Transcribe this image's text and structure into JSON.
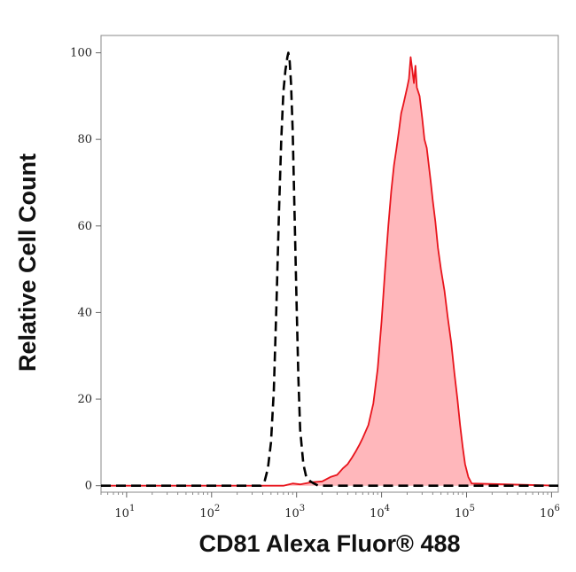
{
  "chart_data": {
    "type": "area",
    "xlabel": "CD81 Alexa Fluor® 488",
    "ylabel": "Relative Cell Count",
    "x_scale": "log",
    "xlim": [
      5,
      1200000
    ],
    "ylim": [
      -1.5,
      104
    ],
    "x_ticks": [
      {
        "value": 10,
        "base": "10",
        "exp": "1"
      },
      {
        "value": 100,
        "base": "10",
        "exp": "2"
      },
      {
        "value": 1000,
        "base": "10",
        "exp": "3"
      },
      {
        "value": 10000,
        "base": "10",
        "exp": "4"
      },
      {
        "value": 100000,
        "base": "10",
        "exp": "5"
      },
      {
        "value": 1000000,
        "base": "10",
        "exp": "6"
      }
    ],
    "y_ticks": [
      {
        "value": 0,
        "label": "0"
      },
      {
        "value": 20,
        "label": "20"
      },
      {
        "value": 40,
        "label": "40"
      },
      {
        "value": 60,
        "label": "60"
      },
      {
        "value": 80,
        "label": "80"
      },
      {
        "value": 100,
        "label": "100"
      }
    ],
    "grid": false,
    "series": [
      {
        "style": "dashed",
        "color": "#000000",
        "fill": "none",
        "x": [
          5,
          380,
          420,
          460,
          500,
          540,
          580,
          620,
          660,
          700,
          740,
          780,
          800,
          830,
          860,
          900,
          950,
          1000,
          1050,
          1100,
          1200,
          1300,
          1450,
          1600,
          1800,
          2000,
          100000,
          1200000
        ],
        "y": [
          0,
          0,
          1,
          4,
          10,
          22,
          42,
          63,
          80,
          91,
          96,
          99,
          100,
          98,
          93,
          82,
          62,
          42,
          25,
          13,
          5,
          2,
          1,
          0.5,
          0,
          0,
          0,
          0
        ]
      },
      {
        "style": "solid",
        "color": "#e8141c",
        "fill": "#ffb7bb",
        "x": [
          5,
          700,
          900,
          1100,
          1500,
          2000,
          2500,
          3000,
          3500,
          4000,
          4500,
          5000,
          5500,
          6000,
          7000,
          8000,
          9000,
          10000,
          11000,
          12000,
          13000,
          14000,
          15000,
          16000,
          17000,
          18000,
          19000,
          20000,
          21000,
          22000,
          23000,
          24000,
          25000,
          26000,
          28000,
          30000,
          32000,
          34000,
          36000,
          38000,
          40000,
          43000,
          46000,
          50000,
          55000,
          60000,
          66000,
          72000,
          78000,
          84000,
          90000,
          96000,
          105000,
          115000,
          1200000
        ],
        "y": [
          0,
          0,
          0.5,
          0.3,
          0.8,
          1,
          2,
          2.5,
          4,
          5,
          6.5,
          8,
          9.5,
          11,
          14,
          19,
          27,
          38,
          50,
          60,
          68,
          74,
          78,
          82,
          86,
          88,
          90,
          92,
          94,
          99,
          96,
          93,
          97,
          92,
          90,
          85,
          80,
          78,
          74,
          70,
          66,
          61,
          55,
          50,
          45,
          39,
          33,
          26,
          20,
          14,
          9,
          5,
          2,
          0.5,
          0
        ]
      }
    ]
  }
}
